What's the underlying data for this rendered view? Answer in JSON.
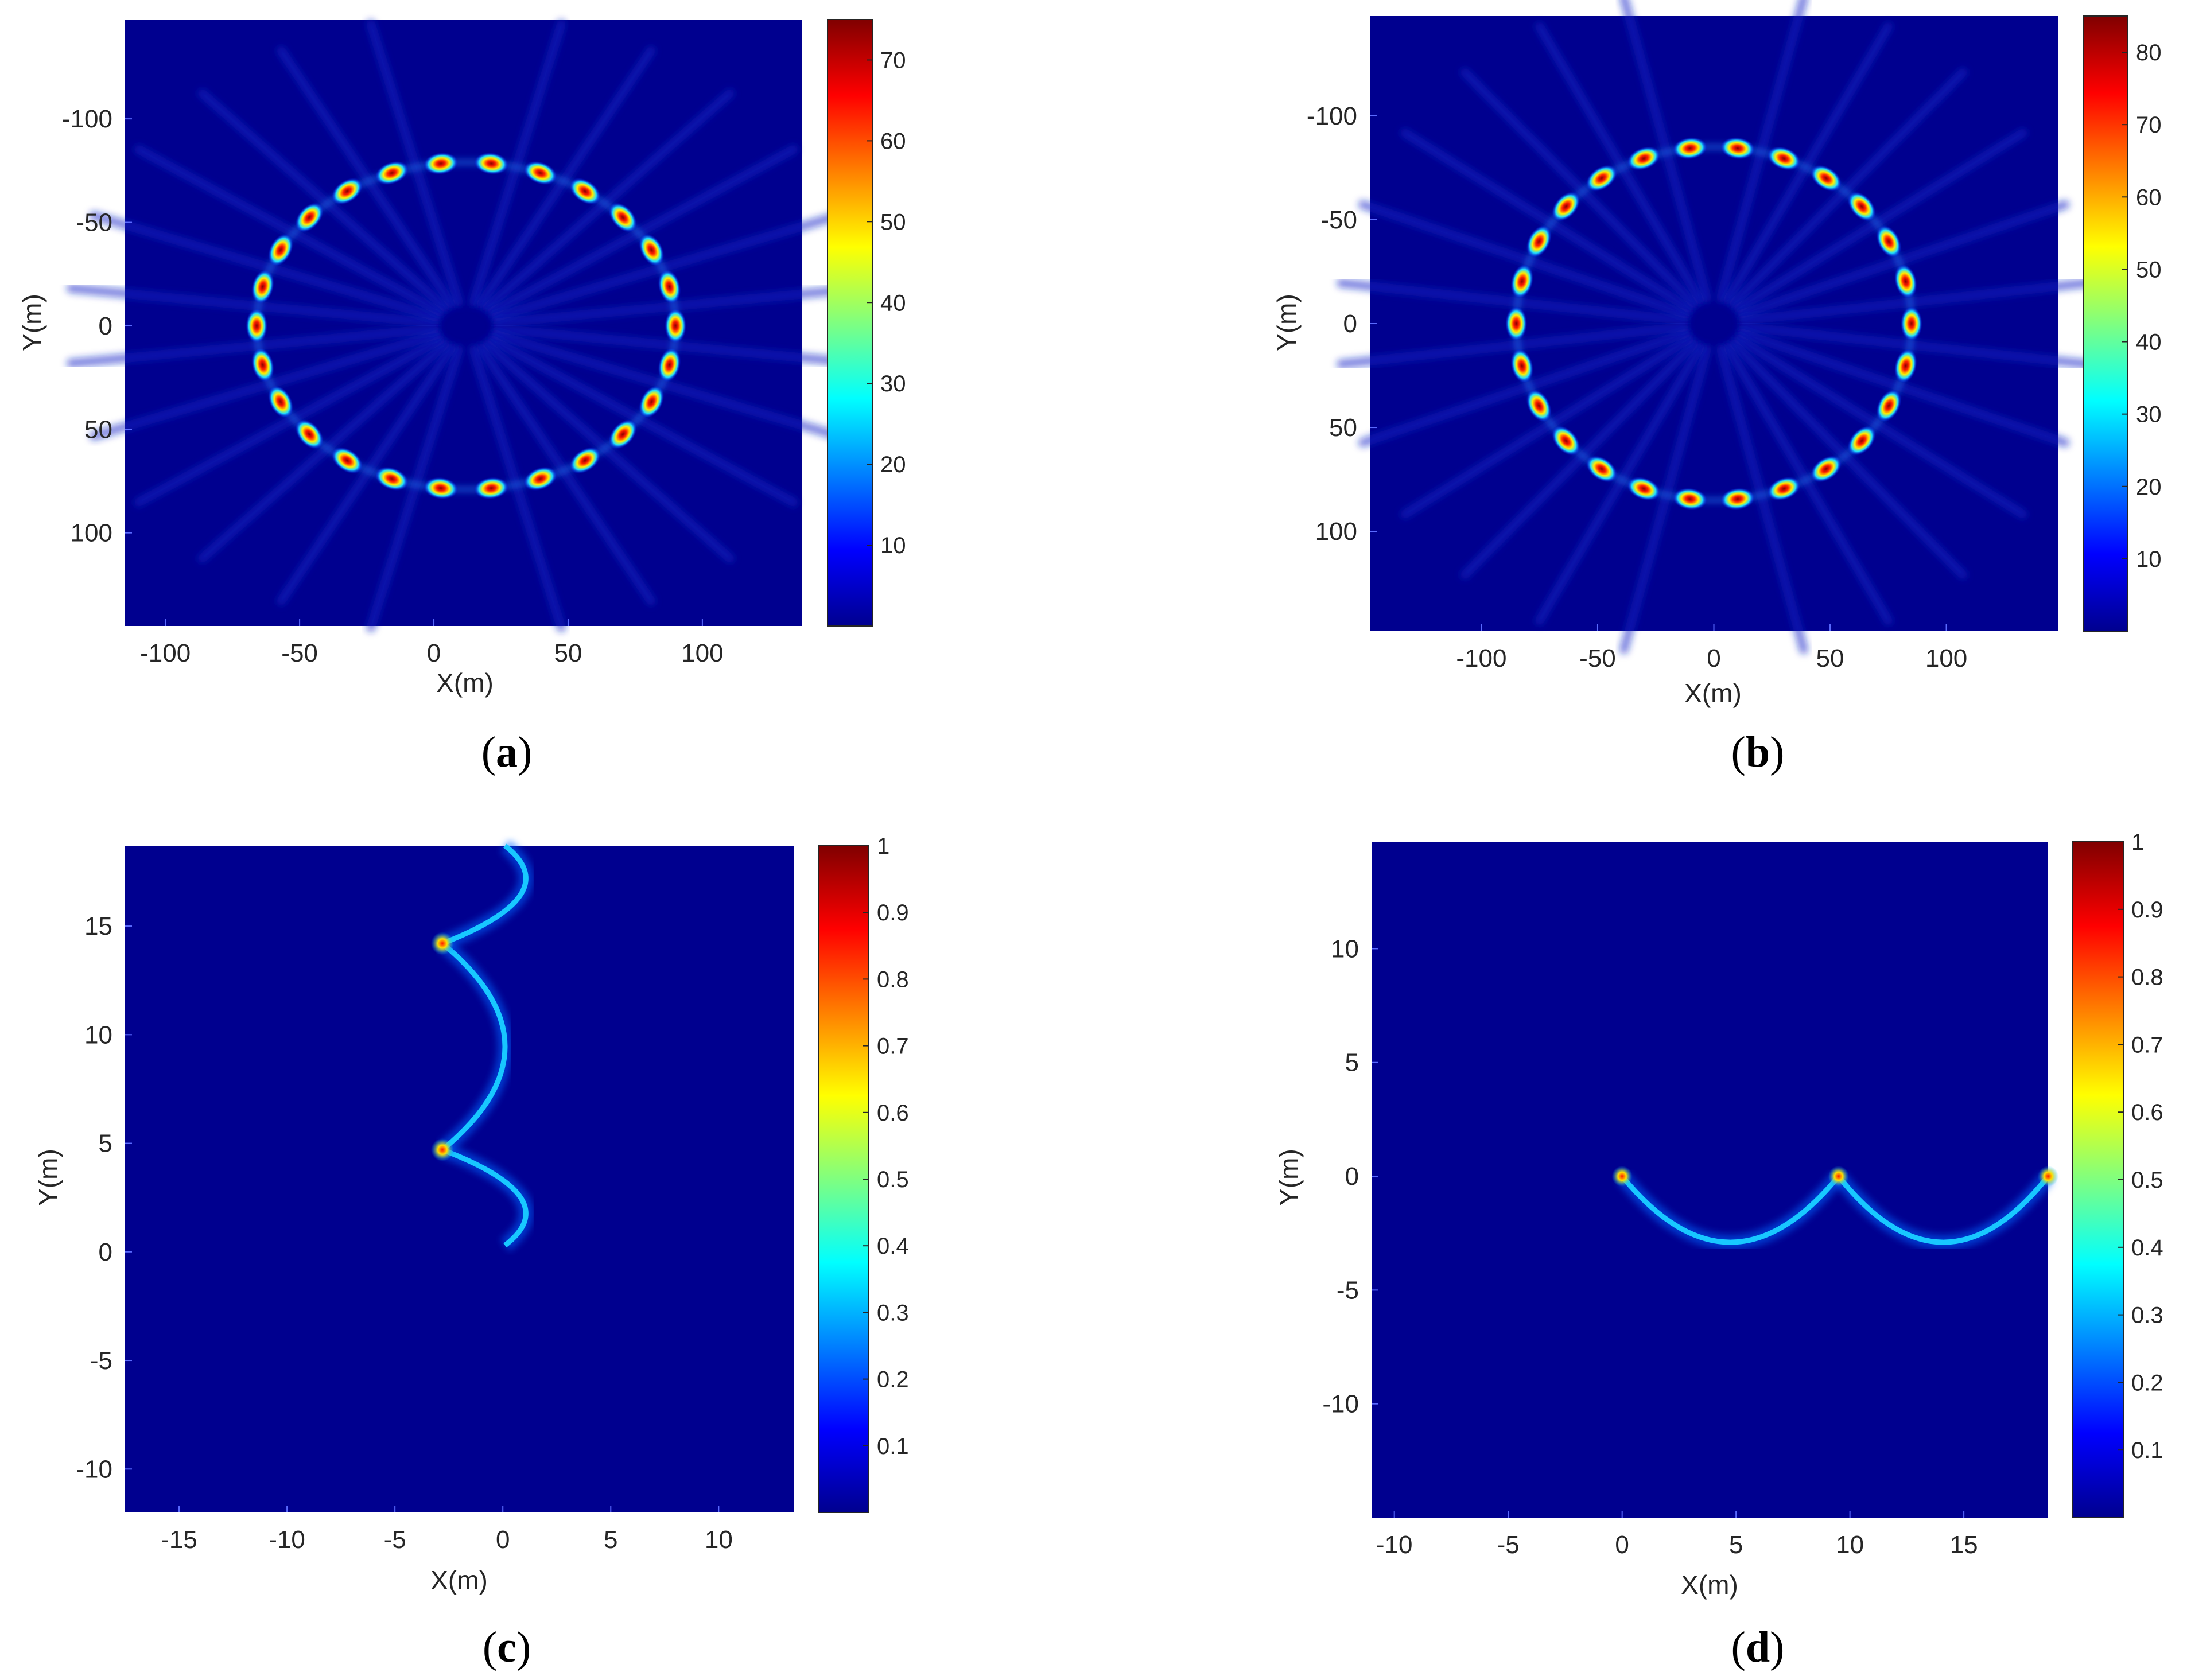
{
  "colors": {
    "background_field": "#00008f",
    "colormap": "jet"
  },
  "chart_data": [
    {
      "type": "heatmap",
      "caption": "(a)",
      "caption_letter": "a",
      "xlabel": "X(m)",
      "ylabel": "Y(m)",
      "xlim": [
        -115,
        137
      ],
      "ylim": [
        145,
        -148
      ],
      "y_reversed": true,
      "xticks": [
        -100,
        -50,
        0,
        50,
        100
      ],
      "xtick_labels": [
        "-100",
        "-50",
        "0",
        "50",
        "100"
      ],
      "yticks": [
        -100,
        -50,
        0,
        50,
        100
      ],
      "ytick_labels": [
        "-100",
        "-50",
        "0",
        "50",
        "100"
      ],
      "colorbar": {
        "min": 0,
        "max": 75,
        "ticks": [
          10,
          20,
          30,
          40,
          50,
          60,
          70
        ],
        "tick_labels": [
          "10",
          "20",
          "30",
          "40",
          "50",
          "60",
          "70"
        ]
      },
      "feature": {
        "shape": "ellipse-of-points",
        "center": [
          12,
          0
        ],
        "rx": 78,
        "ry": 79,
        "count": 26
      }
    },
    {
      "type": "heatmap",
      "caption": "(b)",
      "caption_letter": "b",
      "xlabel": "X(m)",
      "ylabel": "Y(m)",
      "xlim": [
        -148,
        148
      ],
      "ylim": [
        148,
        -148
      ],
      "y_reversed": true,
      "xticks": [
        -100,
        -50,
        0,
        50,
        100
      ],
      "xtick_labels": [
        "-100",
        "-50",
        "0",
        "50",
        "100"
      ],
      "yticks": [
        -100,
        -50,
        0,
        50,
        100
      ],
      "ytick_labels": [
        "-100",
        "-50",
        "0",
        "50",
        "100"
      ],
      "colorbar": {
        "min": 0,
        "max": 85,
        "ticks": [
          10,
          20,
          30,
          40,
          50,
          60,
          70,
          80
        ],
        "tick_labels": [
          "10",
          "20",
          "30",
          "40",
          "50",
          "60",
          "70",
          "80"
        ]
      },
      "feature": {
        "shape": "ellipse-of-points",
        "center": [
          0,
          0
        ],
        "rx": 85,
        "ry": 85,
        "count": 26
      }
    },
    {
      "type": "heatmap",
      "caption": "(c)",
      "caption_letter": "c",
      "xlabel": "X(m)",
      "ylabel": "Y(m)",
      "xlim": [
        -17.5,
        13.5
      ],
      "ylim": [
        -12,
        18.7
      ],
      "y_reversed": false,
      "xticks": [
        -15,
        -10,
        -5,
        0,
        5,
        10
      ],
      "xtick_labels": [
        "-15",
        "-10",
        "-5",
        "0",
        "5",
        "10"
      ],
      "yticks": [
        -10,
        -5,
        0,
        5,
        10,
        15
      ],
      "ytick_labels": [
        "-10",
        "-5",
        "0",
        "5",
        "10",
        "15"
      ],
      "colorbar": {
        "min": 0,
        "max": 1,
        "ticks": [
          0.1,
          0.2,
          0.3,
          0.4,
          0.5,
          0.6,
          0.7,
          0.8,
          0.9,
          1
        ],
        "tick_labels": [
          "0.1",
          "0.2",
          "0.3",
          "0.4",
          "0.5",
          "0.6",
          "0.7",
          "0.8",
          "0.9",
          "1"
        ]
      },
      "feature": {
        "shape": "vertical-arcs",
        "arcs": [
          [
            0.3,
            4.7
          ],
          [
            4.7,
            14.2
          ],
          [
            14.2,
            18.7
          ]
        ],
        "base_x": -2.8,
        "bulge_x": 0.1
      }
    },
    {
      "type": "heatmap",
      "caption": "(d)",
      "caption_letter": "d",
      "xlabel": "X(m)",
      "ylabel": "Y(m)",
      "xlim": [
        -11,
        18.7
      ],
      "ylim": [
        -15,
        14.7
      ],
      "y_reversed": false,
      "xticks": [
        -10,
        -5,
        0,
        5,
        10,
        15
      ],
      "xtick_labels": [
        "-10",
        "-5",
        "0",
        "5",
        "10",
        "15"
      ],
      "yticks": [
        -10,
        -5,
        0,
        5,
        10
      ],
      "ytick_labels": [
        "-10",
        "-5",
        "0",
        "5",
        "10"
      ],
      "colorbar": {
        "min": 0,
        "max": 1,
        "ticks": [
          0.1,
          0.2,
          0.3,
          0.4,
          0.5,
          0.6,
          0.7,
          0.8,
          0.9,
          1
        ],
        "tick_labels": [
          "0.1",
          "0.2",
          "0.3",
          "0.4",
          "0.5",
          "0.6",
          "0.7",
          "0.8",
          "0.9",
          "1"
        ]
      },
      "feature": {
        "shape": "horizontal-arcs",
        "arcs": [
          [
            0,
            9.5
          ],
          [
            9.5,
            18.7
          ]
        ],
        "base_y": 0,
        "dip_y": -2.9
      }
    }
  ]
}
